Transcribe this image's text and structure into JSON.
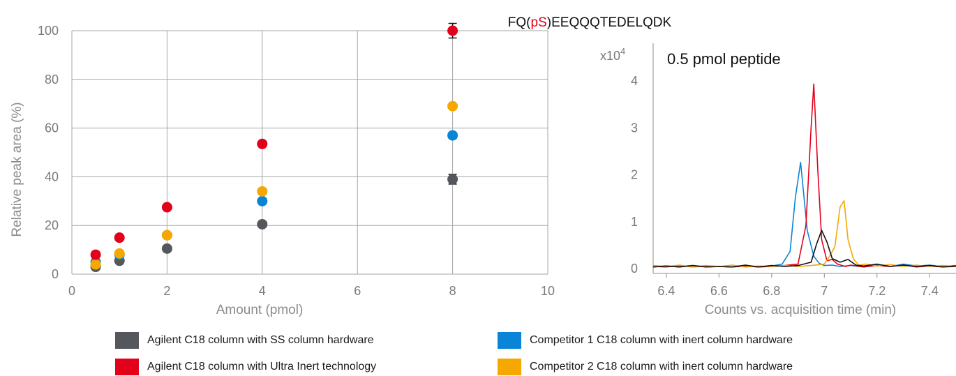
{
  "colors": {
    "agilent_ss": "#54575c",
    "agilent_ui": "#e3001b",
    "competitor1": "#0a84d6",
    "competitor2": "#f5a800",
    "trace_black": "#111111",
    "grid": "#a6a6a6"
  },
  "chart_data": [
    {
      "type": "scatter",
      "title": "",
      "xlabel": "Amount (pmol)",
      "ylabel": "Relative peak area (%)",
      "xlim": [
        0,
        10
      ],
      "ylim": [
        0,
        100
      ],
      "xticks": [
        "0",
        "2",
        "4",
        "6",
        "8",
        "10"
      ],
      "yticks": [
        "0",
        "20",
        "40",
        "60",
        "80",
        "100"
      ],
      "grid": true,
      "series": [
        {
          "name": "Agilent C18 column with SS column hardware",
          "color_key": "agilent_ss",
          "points": [
            [
              0.5,
              3
            ],
            [
              1,
              5.5
            ],
            [
              2,
              10.5
            ],
            [
              4,
              20.5
            ],
            [
              8,
              39
            ]
          ],
          "error": [
            0,
            0,
            0,
            0,
            2
          ]
        },
        {
          "name": "Competitor 1 C18 column with inert column hardware",
          "color_key": "competitor1",
          "points": [
            [
              0.5,
              5
            ],
            [
              1,
              8
            ],
            [
              2,
              16
            ],
            [
              4,
              30
            ],
            [
              8,
              57
            ]
          ],
          "error": [
            0,
            0,
            0,
            0,
            1.2
          ]
        },
        {
          "name": "Competitor 2 C18 column with inert column hardware",
          "color_key": "competitor2",
          "points": [
            [
              0.5,
              4
            ],
            [
              1,
              8.5
            ],
            [
              2,
              16
            ],
            [
              4,
              34
            ],
            [
              8,
              69
            ]
          ],
          "error": [
            0,
            0,
            0,
            0,
            0
          ]
        },
        {
          "name": "Agilent C18 column with Ultra Inert technology",
          "color_key": "agilent_ui",
          "points": [
            [
              0.5,
              8
            ],
            [
              1,
              15
            ],
            [
              2,
              27.5
            ],
            [
              4,
              53.5
            ],
            [
              8,
              100
            ]
          ],
          "error": [
            0,
            0,
            0,
            0,
            3
          ]
        }
      ]
    },
    {
      "type": "line",
      "title_parts": [
        {
          "text": "FQ(",
          "highlight": false
        },
        {
          "text": "pS",
          "highlight": true
        },
        {
          "text": ")EEQQQTEDELQDK",
          "highlight": false
        }
      ],
      "annotation": "0.5 pmol peptide",
      "xlabel": "Counts vs. acquisition time (min)",
      "ylabel_prefix": "x10",
      "ylabel_exponent": "4",
      "xlim": [
        6.35,
        7.5
      ],
      "ylim": [
        0,
        4.3
      ],
      "xticks": [
        "6.4",
        "6.6",
        "6.8",
        "7",
        "7.2",
        "7.4"
      ],
      "yticks": [
        "0",
        "1",
        "2",
        "3",
        "4"
      ],
      "series": [
        {
          "color_key": "competitor1",
          "x": [
            6.35,
            6.4,
            6.45,
            6.5,
            6.55,
            6.6,
            6.65,
            6.7,
            6.75,
            6.8,
            6.84,
            6.87,
            6.89,
            6.91,
            6.935,
            6.96,
            6.98,
            7.0,
            7.03,
            7.06,
            7.1,
            7.15,
            7.2,
            7.25,
            7.3,
            7.35,
            7.4,
            7.45,
            7.5
          ],
          "y": [
            0.02,
            0.04,
            0.02,
            0.05,
            0.02,
            0.03,
            0.02,
            0.04,
            0.02,
            0.04,
            0.08,
            0.35,
            1.5,
            2.25,
            0.8,
            0.25,
            0.1,
            0.05,
            0.06,
            0.03,
            0.05,
            0.02,
            0.06,
            0.03,
            0.08,
            0.04,
            0.06,
            0.03,
            0.05
          ]
        },
        {
          "color_key": "agilent_ui",
          "x": [
            6.35,
            6.4,
            6.45,
            6.5,
            6.55,
            6.6,
            6.65,
            6.7,
            6.75,
            6.8,
            6.85,
            6.9,
            6.93,
            6.95,
            6.96,
            6.975,
            6.99,
            7.01,
            7.03,
            7.05,
            7.08,
            7.1,
            7.15,
            7.2,
            7.25,
            7.3,
            7.35,
            7.4,
            7.45,
            7.5
          ],
          "y": [
            0.03,
            0.02,
            0.05,
            0.02,
            0.04,
            0.03,
            0.02,
            0.04,
            0.02,
            0.03,
            0.05,
            0.08,
            0.9,
            3.0,
            3.92,
            2.1,
            0.6,
            0.15,
            0.18,
            0.08,
            0.03,
            0.06,
            0.02,
            0.05,
            0.03,
            0.06,
            0.02,
            0.04,
            0.02,
            0.03
          ]
        },
        {
          "color_key": "competitor2",
          "x": [
            6.35,
            6.4,
            6.45,
            6.5,
            6.55,
            6.6,
            6.65,
            6.7,
            6.75,
            6.8,
            6.85,
            6.9,
            6.95,
            7.0,
            7.02,
            7.04,
            7.06,
            7.075,
            7.09,
            7.11,
            7.13,
            7.16,
            7.2,
            7.25,
            7.3,
            7.35,
            7.4,
            7.45,
            7.5
          ],
          "y": [
            0.05,
            0.03,
            0.06,
            0.02,
            0.05,
            0.03,
            0.06,
            0.02,
            0.04,
            0.03,
            0.05,
            0.03,
            0.05,
            0.08,
            0.25,
            0.45,
            1.3,
            1.43,
            0.6,
            0.2,
            0.06,
            0.08,
            0.04,
            0.07,
            0.03,
            0.06,
            0.03,
            0.05,
            0.03
          ]
        },
        {
          "color_key": "trace_black",
          "x": [
            6.35,
            6.4,
            6.45,
            6.5,
            6.55,
            6.6,
            6.65,
            6.7,
            6.75,
            6.8,
            6.85,
            6.9,
            6.95,
            6.97,
            6.99,
            7.01,
            7.03,
            7.06,
            7.09,
            7.12,
            7.15,
            7.2,
            7.25,
            7.3,
            7.35,
            7.4,
            7.45,
            7.5
          ],
          "y": [
            0.02,
            0.04,
            0.02,
            0.05,
            0.02,
            0.03,
            0.02,
            0.06,
            0.02,
            0.05,
            0.03,
            0.05,
            0.12,
            0.5,
            0.8,
            0.55,
            0.2,
            0.12,
            0.18,
            0.06,
            0.04,
            0.08,
            0.03,
            0.06,
            0.03,
            0.05,
            0.02,
            0.04
          ]
        }
      ]
    }
  ],
  "legend": [
    {
      "label": "Agilent C18 column with SS column hardware",
      "color_key": "agilent_ss"
    },
    {
      "label": "Competitor 1 C18 column with inert column hardware",
      "color_key": "competitor1"
    },
    {
      "label": "Agilent C18 column with Ultra Inert technology",
      "color_key": "agilent_ui"
    },
    {
      "label": "Competitor 2 C18 column with inert column hardware",
      "color_key": "competitor2"
    }
  ]
}
